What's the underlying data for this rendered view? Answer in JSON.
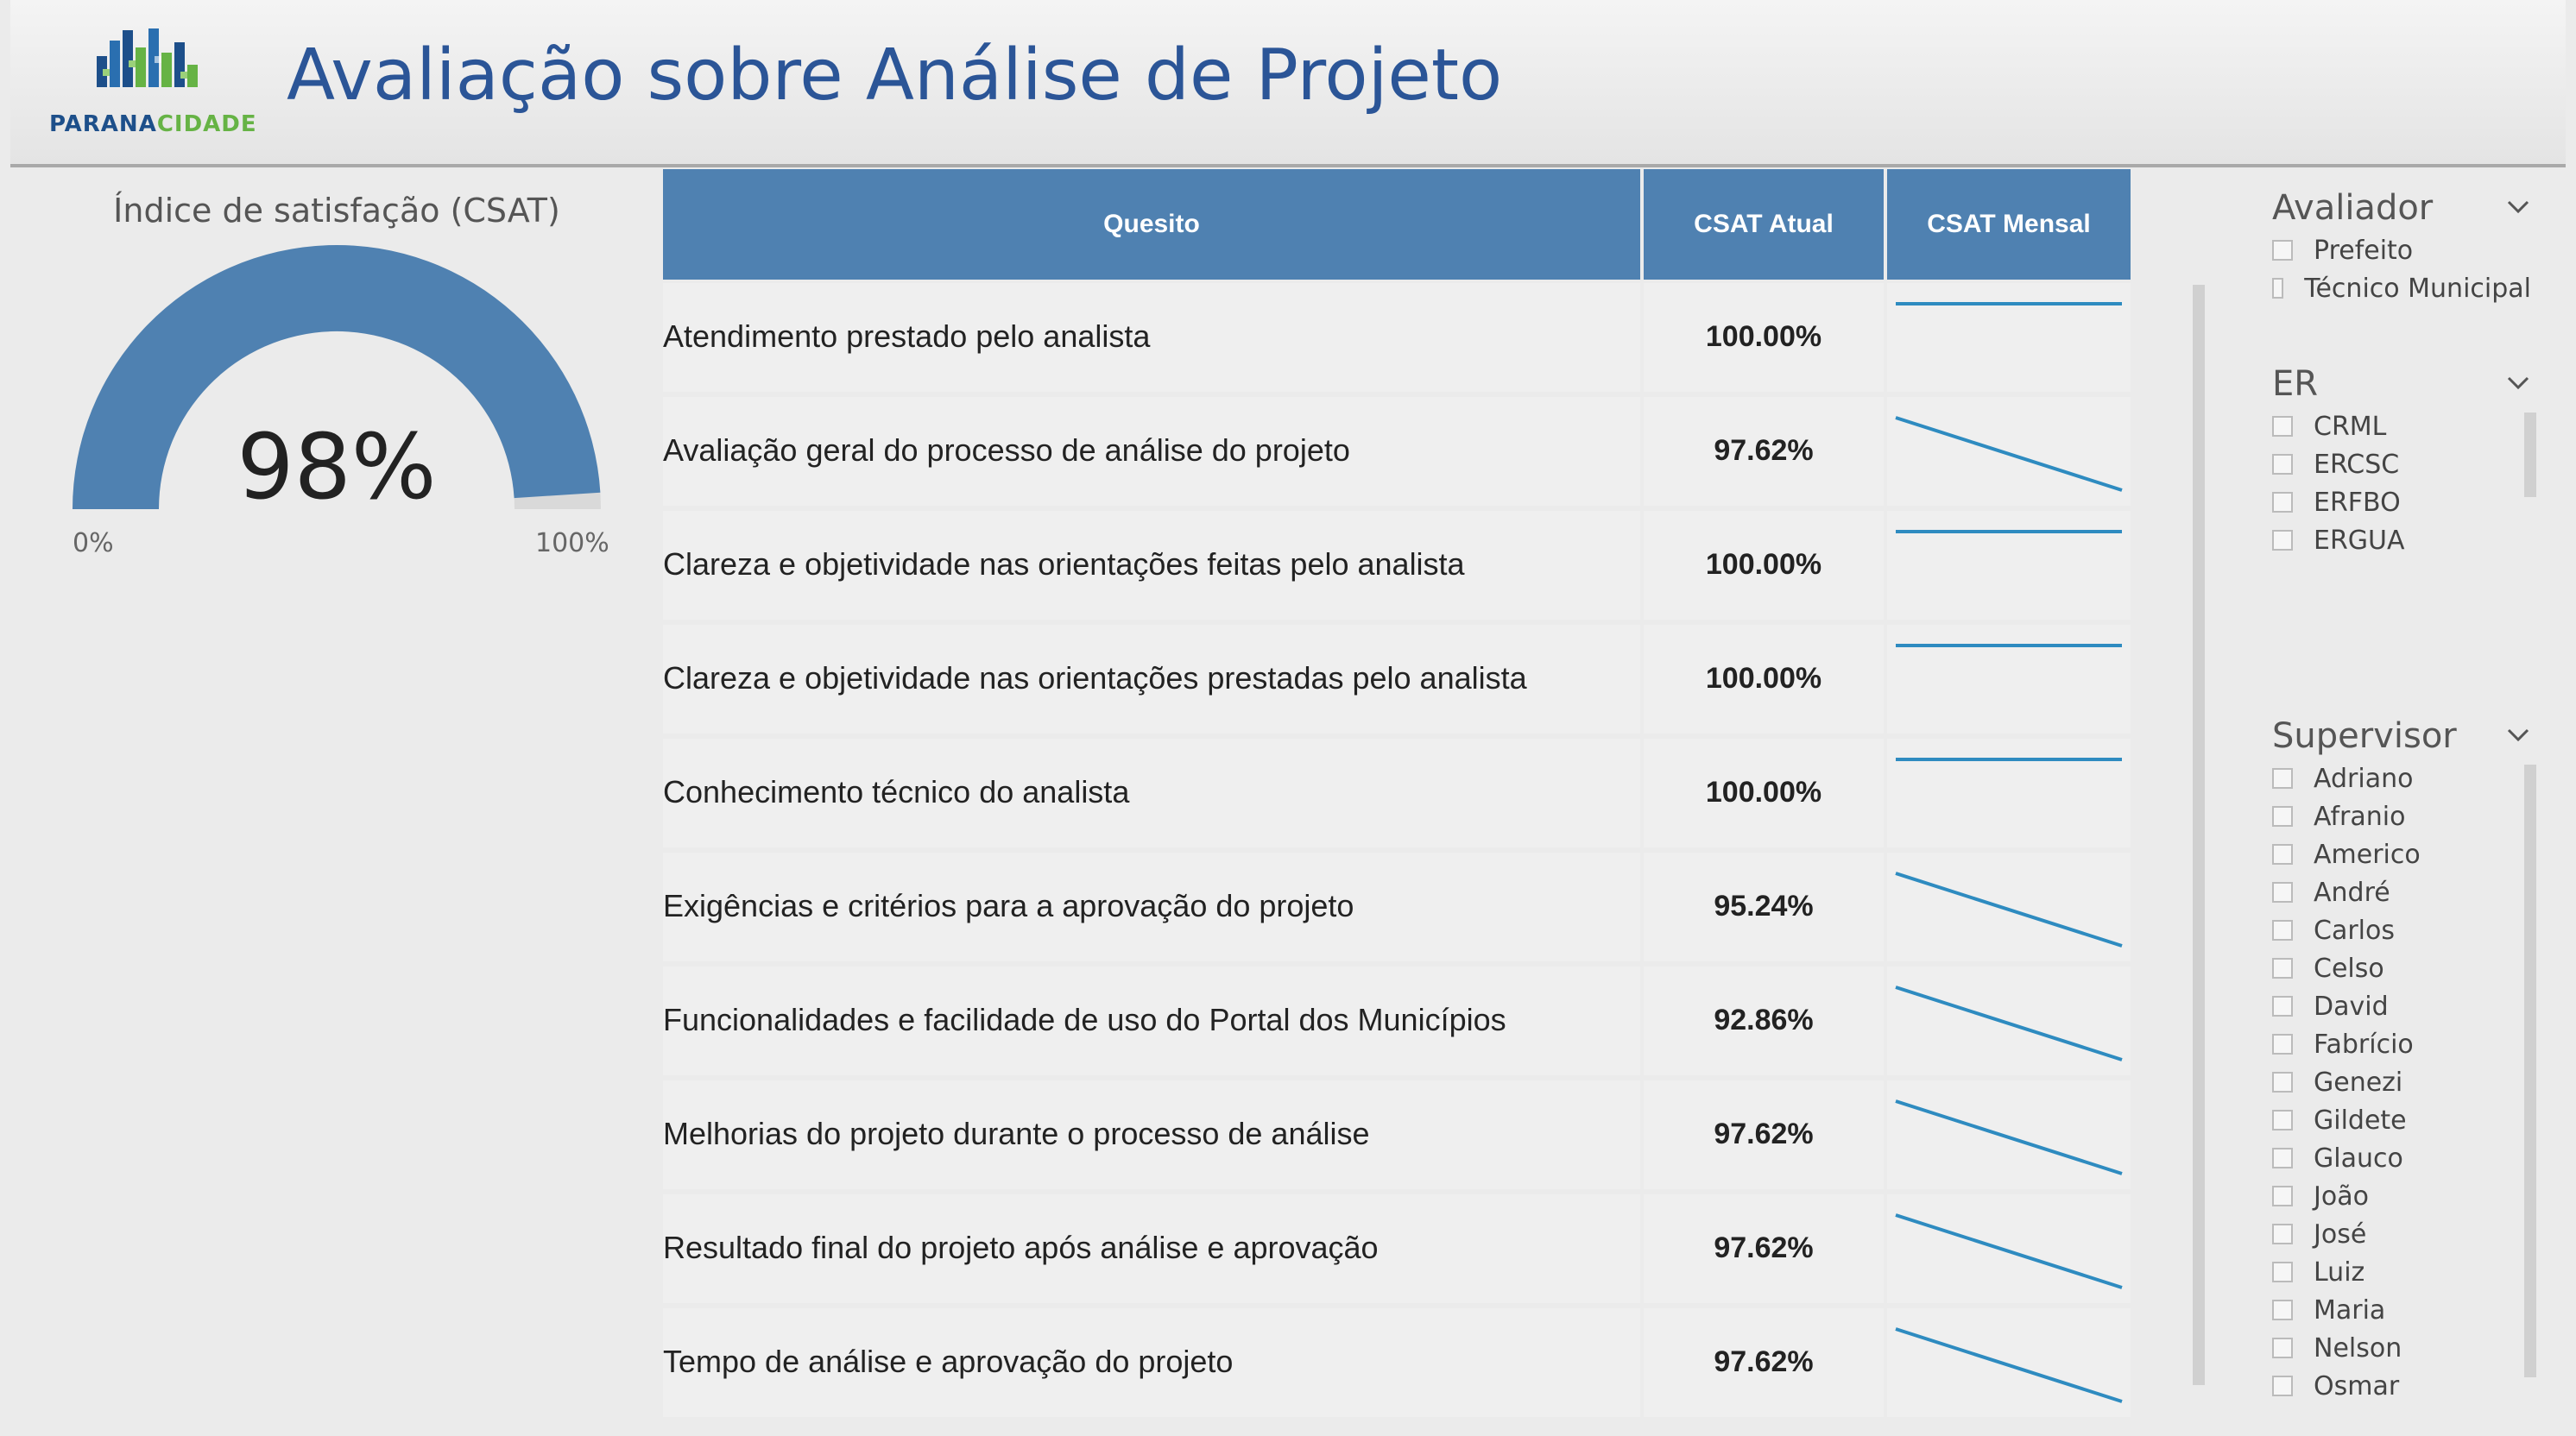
{
  "header": {
    "title": "Avaliação sobre Análise de Projeto",
    "logo_part1": "PARANA",
    "logo_part2": "CIDADE",
    "colors": {
      "logo_blue": "#1d4f8a",
      "logo_green": "#66b345",
      "title": "#2b5597"
    }
  },
  "gauge": {
    "title": "Índice de satisfação (CSAT)",
    "value_label": "98%",
    "value": 0.98,
    "min_label": "0%",
    "max_label": "100%",
    "color": "#4f81b1"
  },
  "table": {
    "headers": {
      "quesito": "Quesito",
      "atual": "CSAT Atual",
      "mensal": "CSAT Mensal"
    },
    "header_color": "#4f81b1",
    "sparkline_color": "#2e8bc0",
    "rows": [
      {
        "quesito": "Atendimento prestado pelo analista",
        "atual": "100.00%",
        "trend": [
          1,
          1
        ]
      },
      {
        "quesito": "Avaliação geral do processo de análise do projeto",
        "atual": "97.62%",
        "trend": [
          1,
          0
        ]
      },
      {
        "quesito": "Clareza e objetividade nas orientações feitas pelo analista",
        "atual": "100.00%",
        "trend": [
          1,
          1
        ]
      },
      {
        "quesito": "Clareza e objetividade nas orientações prestadas pelo analista",
        "atual": "100.00%",
        "trend": [
          1,
          1
        ]
      },
      {
        "quesito": "Conhecimento técnico do analista",
        "atual": "100.00%",
        "trend": [
          1,
          1
        ]
      },
      {
        "quesito": "Exigências e critérios para a aprovação do projeto",
        "atual": "95.24%",
        "trend": [
          1,
          0
        ]
      },
      {
        "quesito": "Funcionalidades e facilidade de uso do Portal dos Municípios",
        "atual": "92.86%",
        "trend": [
          1,
          0
        ]
      },
      {
        "quesito": "Melhorias do projeto durante o processo de análise",
        "atual": "97.62%",
        "trend": [
          1,
          0
        ]
      },
      {
        "quesito": "Resultado final do projeto após análise e aprovação",
        "atual": "97.62%",
        "trend": [
          1,
          0
        ]
      },
      {
        "quesito": "Tempo de análise e aprovação do projeto",
        "atual": "97.62%",
        "trend": [
          1,
          0
        ]
      }
    ]
  },
  "slicers": {
    "avaliador": {
      "title": "Avaliador",
      "options": [
        "Prefeito",
        "Técnico Municipal"
      ]
    },
    "er": {
      "title": "ER",
      "options": [
        "CRML",
        "ERCSC",
        "ERFBO",
        "ERGUA"
      ]
    },
    "supervisor": {
      "title": "Supervisor",
      "options": [
        "Adriano",
        "Afranio",
        "Americo",
        "André",
        "Carlos",
        "Celso",
        "David",
        "Fabrício",
        "Genezi",
        "Gildete",
        "Glauco",
        "João",
        "José",
        "Luiz",
        "Maria",
        "Nelson",
        "Osmar"
      ]
    }
  }
}
